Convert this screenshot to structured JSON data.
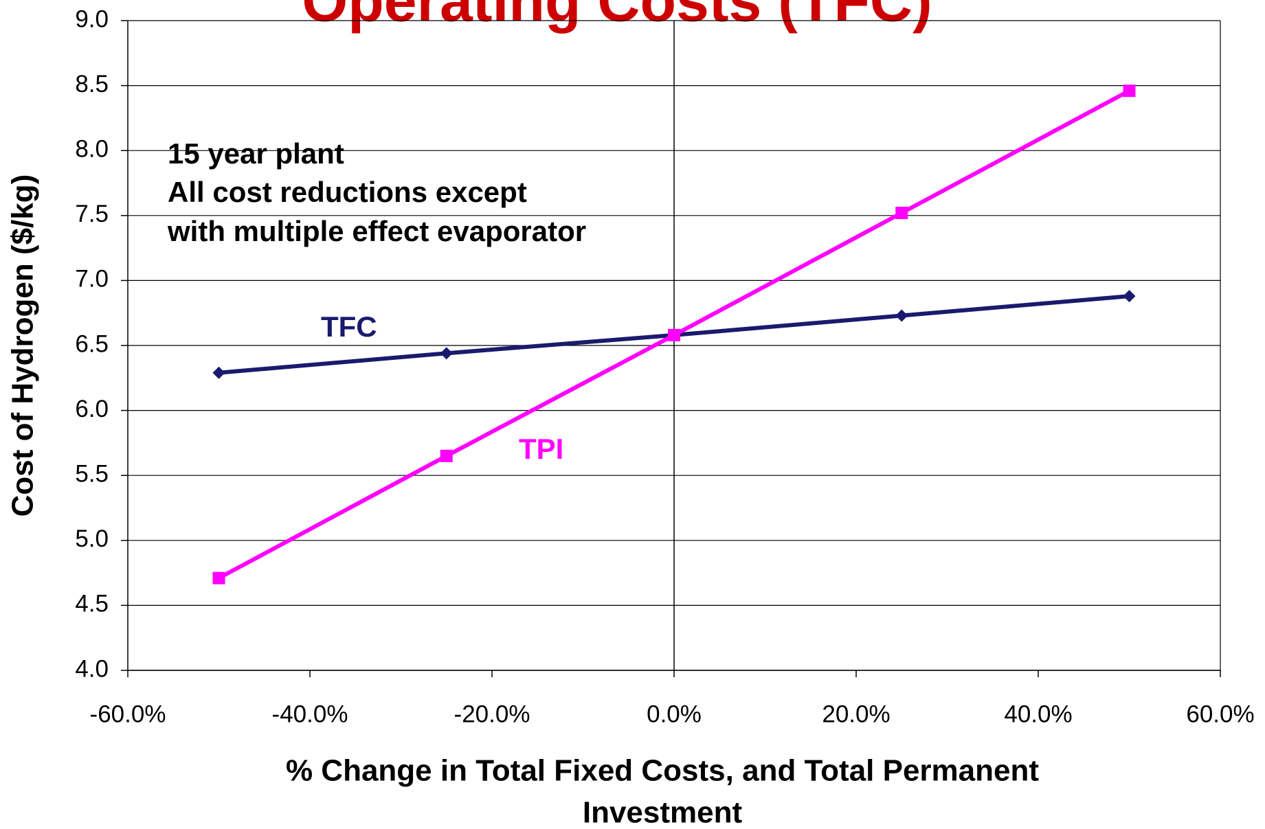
{
  "chart_data": {
    "type": "line",
    "title": "Operating Costs (TFC)",
    "annotation": [
      "15 year plant",
      "All cost reductions except",
      "with multiple effect evaporator"
    ],
    "xlabel": [
      "% Change in Total Fixed Costs, and Total Permanent",
      "Investment"
    ],
    "ylabel": "Cost of Hydrogen ($/kg)",
    "x": [
      -50,
      -25,
      0,
      25,
      50
    ],
    "series": [
      {
        "name": "TFC",
        "color": "#1a1a6e",
        "marker": "diamond",
        "values": [
          6.29,
          6.44,
          6.58,
          6.73,
          6.88
        ]
      },
      {
        "name": "TPI",
        "color": "#ff00ff",
        "marker": "square",
        "values": [
          4.71,
          5.65,
          6.58,
          7.52,
          8.46
        ]
      }
    ],
    "xlim": [
      -60,
      60
    ],
    "xticks": [
      {
        "value": -60,
        "label": "-60.0%"
      },
      {
        "value": -40,
        "label": "-40.0%"
      },
      {
        "value": -20,
        "label": "-20.0%"
      },
      {
        "value": 0,
        "label": "0.0%"
      },
      {
        "value": 20,
        "label": "20.0%"
      },
      {
        "value": 40,
        "label": "40.0%"
      },
      {
        "value": 60,
        "label": "60.0%"
      }
    ],
    "ylim": [
      4,
      9
    ],
    "yticks": [
      {
        "value": 4,
        "label": "4.0"
      },
      {
        "value": 4.5,
        "label": "4.5"
      },
      {
        "value": 5,
        "label": "5.0"
      },
      {
        "value": 5.5,
        "label": "5.5"
      },
      {
        "value": 6,
        "label": "6.0"
      },
      {
        "value": 6.5,
        "label": "6.5"
      },
      {
        "value": 7,
        "label": "7.0"
      },
      {
        "value": 7.5,
        "label": "7.5"
      },
      {
        "value": 8,
        "label": "8.0"
      },
      {
        "value": 8.5,
        "label": "8.5"
      },
      {
        "value": 9,
        "label": "9.0"
      }
    ],
    "grid": true
  }
}
